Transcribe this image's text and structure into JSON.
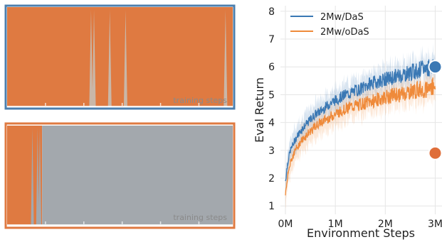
{
  "chart_data": [
    {
      "type": "area",
      "panel": "top",
      "xlabel": "training steps",
      "frame_color": "#4c7fae",
      "fill_color": "#df7a41",
      "spike_color": "#c9b7a8",
      "spikes_fraction": [
        0.372,
        0.385,
        0.455,
        0.525,
        0.968
      ]
    },
    {
      "type": "area",
      "panel": "bottom",
      "xlabel": "training steps",
      "frame_color": "#df7a41",
      "left_color": "#df7a41",
      "right_color": "#a3a8ad",
      "transition_fraction": 0.155,
      "spikes_fraction": [
        0.112,
        0.135,
        0.145
      ]
    },
    {
      "type": "line",
      "xlabel": "Environment Steps",
      "ylabel": "Eval Return",
      "xlim": [
        -0.1,
        3.15
      ],
      "ylim": [
        0.7,
        8.2
      ],
      "xticks": [
        0,
        1,
        2,
        3
      ],
      "xtick_labels": [
        "0M",
        "1M",
        "2M",
        "3M"
      ],
      "yticks": [
        1,
        2,
        3,
        4,
        5,
        6,
        7,
        8
      ],
      "ytick_labels": [
        "1",
        "2",
        "3",
        "4",
        "5",
        "6",
        "7",
        "8"
      ],
      "grid": true,
      "legend": "top-left",
      "x": [
        0.0,
        0.05,
        0.1,
        0.2,
        0.3,
        0.4,
        0.5,
        0.6,
        0.7,
        0.8,
        0.9,
        1.0,
        1.1,
        1.2,
        1.3,
        1.4,
        1.5,
        1.6,
        1.7,
        1.8,
        1.9,
        2.0,
        2.1,
        2.2,
        2.3,
        2.4,
        2.5,
        2.6,
        2.7,
        2.8,
        2.9,
        3.0
      ],
      "series": [
        {
          "name": "2Mw/DaS",
          "color": "#3a78b4",
          "values": [
            1.9,
            2.6,
            3.0,
            3.4,
            3.7,
            3.9,
            4.1,
            4.3,
            4.4,
            4.55,
            4.7,
            4.8,
            4.9,
            5.0,
            5.05,
            5.15,
            5.2,
            5.3,
            5.4,
            5.45,
            5.5,
            5.55,
            5.6,
            5.65,
            5.7,
            5.75,
            5.8,
            5.85,
            5.9,
            5.95,
            6.0,
            6.1
          ]
        },
        {
          "name": "2Mw/oDaS",
          "color": "#ef8a3a",
          "values": [
            1.4,
            2.1,
            2.6,
            3.0,
            3.3,
            3.5,
            3.7,
            3.85,
            4.0,
            4.1,
            4.2,
            4.3,
            4.4,
            4.5,
            4.55,
            4.6,
            4.65,
            4.7,
            4.75,
            4.8,
            4.85,
            4.9,
            4.95,
            5.0,
            5.0,
            5.05,
            5.1,
            5.15,
            5.2,
            5.2,
            5.25,
            5.35
          ]
        }
      ],
      "markers": [
        {
          "x": 3.0,
          "y": 6.0,
          "color": "#3a78b4"
        },
        {
          "x": 3.0,
          "y": 2.9,
          "color": "#df6e3a"
        }
      ]
    }
  ]
}
